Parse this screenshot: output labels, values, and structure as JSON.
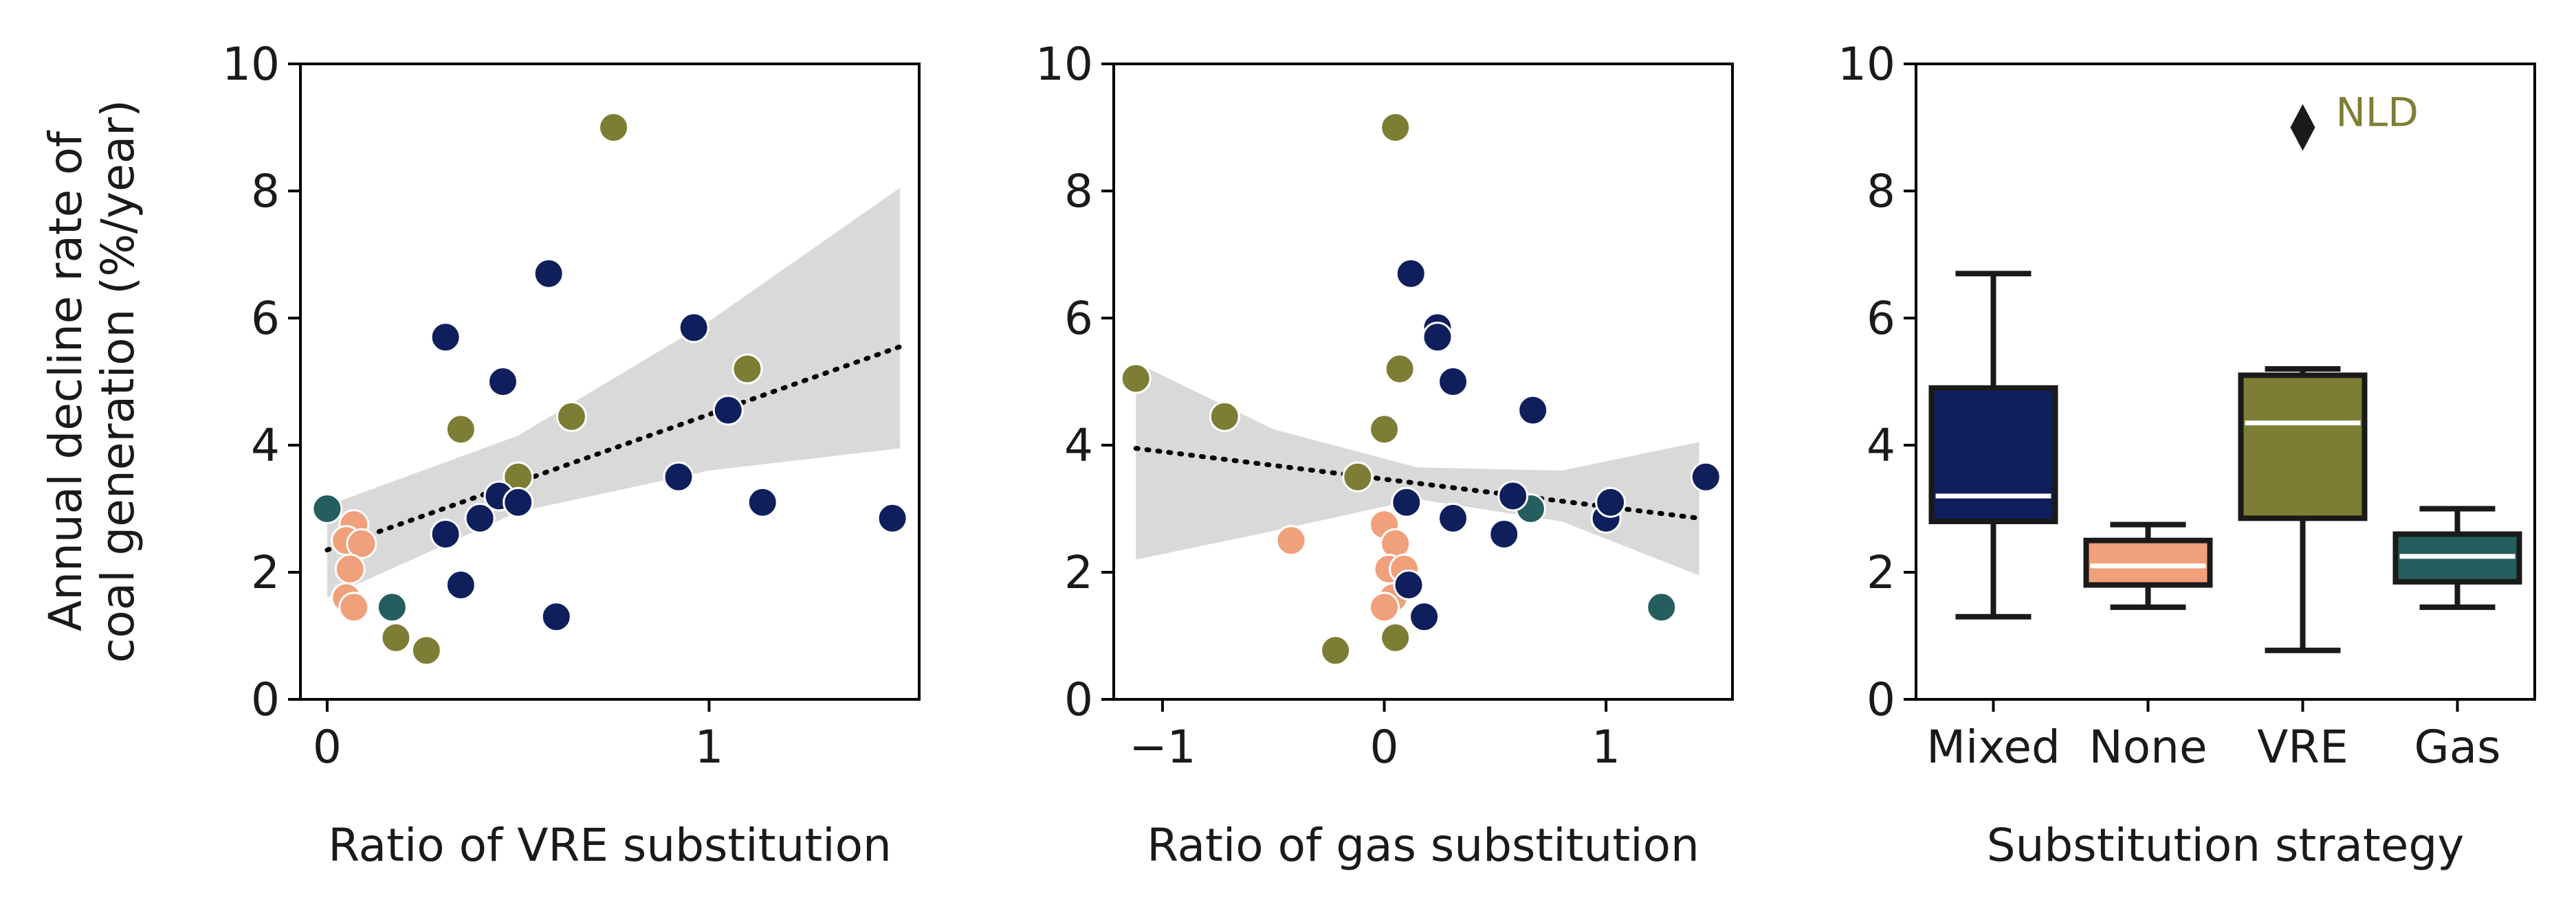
{
  "colors": {
    "Mixed": "#0f1f5c",
    "None": "#f0a07a",
    "VRE": "#7d7d35",
    "Gas": "#245e5e",
    "ci_band": "#d9d9d9",
    "trend": "#000000",
    "axis": "#000000",
    "box_line": "#1a1a1a",
    "median": "#ffffff"
  },
  "shared": {
    "ylabel_line1": "Annual decline rate of",
    "ylabel_line2": "coal generation (%/year)"
  },
  "chart_data": [
    {
      "type": "scatter",
      "xlabel": "Ratio of VRE substitution",
      "xlim": [
        -0.07,
        1.55
      ],
      "ylim": [
        0,
        10
      ],
      "xticks": [
        {
          "v": 0,
          "label": "0"
        },
        {
          "v": 1,
          "label": "1"
        }
      ],
      "yticks": [
        {
          "v": 0,
          "label": "0"
        },
        {
          "v": 2,
          "label": "2"
        },
        {
          "v": 4,
          "label": "4"
        },
        {
          "v": 6,
          "label": "6"
        },
        {
          "v": 8,
          "label": "8"
        },
        {
          "v": 10,
          "label": "10"
        }
      ],
      "trend": {
        "x": [
          0.0,
          1.5
        ],
        "y": [
          2.35,
          5.55
        ],
        "style": "dotted"
      },
      "ci_band": {
        "x": [
          0.0,
          0.5,
          1.0,
          1.5
        ],
        "lower": [
          1.6,
          2.95,
          3.6,
          3.95
        ],
        "upper": [
          3.05,
          4.15,
          5.95,
          8.05
        ]
      },
      "points": [
        {
          "x": 0.0,
          "y": 3.0,
          "group": "Gas"
        },
        {
          "x": 0.17,
          "y": 1.45,
          "group": "Gas"
        },
        {
          "x": 0.07,
          "y": 2.75,
          "group": "None"
        },
        {
          "x": 0.05,
          "y": 2.5,
          "group": "None"
        },
        {
          "x": 0.09,
          "y": 2.45,
          "group": "None"
        },
        {
          "x": 0.06,
          "y": 2.05,
          "group": "None"
        },
        {
          "x": 0.05,
          "y": 1.6,
          "group": "None"
        },
        {
          "x": 0.07,
          "y": 1.45,
          "group": "None"
        },
        {
          "x": 0.18,
          "y": 0.97,
          "group": "VRE"
        },
        {
          "x": 0.26,
          "y": 0.77,
          "group": "VRE"
        },
        {
          "x": 0.35,
          "y": 4.25,
          "group": "VRE"
        },
        {
          "x": 0.5,
          "y": 3.5,
          "group": "VRE"
        },
        {
          "x": 0.64,
          "y": 4.45,
          "group": "VRE"
        },
        {
          "x": 0.75,
          "y": 9.0,
          "group": "VRE"
        },
        {
          "x": 1.1,
          "y": 5.2,
          "group": "VRE"
        },
        {
          "x": 0.31,
          "y": 5.7,
          "group": "Mixed"
        },
        {
          "x": 0.31,
          "y": 2.6,
          "group": "Mixed"
        },
        {
          "x": 0.35,
          "y": 1.8,
          "group": "Mixed"
        },
        {
          "x": 0.4,
          "y": 2.85,
          "group": "Mixed"
        },
        {
          "x": 0.45,
          "y": 3.2,
          "group": "Mixed"
        },
        {
          "x": 0.46,
          "y": 5.0,
          "group": "Mixed"
        },
        {
          "x": 0.5,
          "y": 3.1,
          "group": "Mixed"
        },
        {
          "x": 0.58,
          "y": 6.7,
          "group": "Mixed"
        },
        {
          "x": 0.6,
          "y": 1.3,
          "group": "Mixed"
        },
        {
          "x": 0.92,
          "y": 3.5,
          "group": "Mixed"
        },
        {
          "x": 0.96,
          "y": 5.85,
          "group": "Mixed"
        },
        {
          "x": 1.05,
          "y": 4.55,
          "group": "Mixed"
        },
        {
          "x": 1.14,
          "y": 3.1,
          "group": "Mixed"
        },
        {
          "x": 1.48,
          "y": 2.85,
          "group": "Mixed"
        }
      ]
    },
    {
      "type": "scatter",
      "xlabel": "Ratio of gas substitution",
      "xlim": [
        -1.22,
        1.57
      ],
      "ylim": [
        0,
        10
      ],
      "xticks": [
        {
          "v": -1,
          "label": "−1"
        },
        {
          "v": 0,
          "label": "0"
        },
        {
          "v": 1,
          "label": "1"
        }
      ],
      "yticks": [
        {
          "v": 0,
          "label": "0"
        },
        {
          "v": 2,
          "label": "2"
        },
        {
          "v": 4,
          "label": "4"
        },
        {
          "v": 6,
          "label": "6"
        },
        {
          "v": 8,
          "label": "8"
        },
        {
          "v": 10,
          "label": "10"
        }
      ],
      "trend": {
        "x": [
          -1.12,
          1.42
        ],
        "y": [
          3.95,
          2.85
        ],
        "style": "dotted"
      },
      "ci_band": {
        "x": [
          -1.12,
          -0.5,
          0.15,
          0.8,
          1.42
        ],
        "lower": [
          2.2,
          2.65,
          3.15,
          2.8,
          1.95
        ],
        "upper": [
          5.3,
          4.25,
          3.65,
          3.6,
          4.05
        ]
      },
      "points": [
        {
          "x": -1.12,
          "y": 5.05,
          "group": "VRE"
        },
        {
          "x": -0.72,
          "y": 4.45,
          "group": "VRE"
        },
        {
          "x": -0.22,
          "y": 0.77,
          "group": "VRE"
        },
        {
          "x": -0.12,
          "y": 3.5,
          "group": "VRE"
        },
        {
          "x": 0.0,
          "y": 4.25,
          "group": "VRE"
        },
        {
          "x": 0.05,
          "y": 0.97,
          "group": "VRE"
        },
        {
          "x": 0.05,
          "y": 9.0,
          "group": "VRE"
        },
        {
          "x": 0.07,
          "y": 5.2,
          "group": "VRE"
        },
        {
          "x": -0.42,
          "y": 2.5,
          "group": "None"
        },
        {
          "x": 0.0,
          "y": 2.75,
          "group": "None"
        },
        {
          "x": 0.05,
          "y": 2.45,
          "group": "None"
        },
        {
          "x": 0.02,
          "y": 2.05,
          "group": "None"
        },
        {
          "x": 0.09,
          "y": 2.05,
          "group": "None"
        },
        {
          "x": 0.04,
          "y": 1.6,
          "group": "None"
        },
        {
          "x": 0.0,
          "y": 1.45,
          "group": "None"
        },
        {
          "x": 0.66,
          "y": 3.0,
          "group": "Gas"
        },
        {
          "x": 1.25,
          "y": 1.45,
          "group": "Gas"
        },
        {
          "x": 0.1,
          "y": 3.1,
          "group": "Mixed"
        },
        {
          "x": 0.12,
          "y": 6.7,
          "group": "Mixed"
        },
        {
          "x": 0.24,
          "y": 5.85,
          "group": "Mixed"
        },
        {
          "x": 0.24,
          "y": 5.7,
          "group": "Mixed"
        },
        {
          "x": 0.31,
          "y": 5.0,
          "group": "Mixed"
        },
        {
          "x": 0.31,
          "y": 2.85,
          "group": "Mixed"
        },
        {
          "x": 0.11,
          "y": 1.8,
          "group": "Mixed"
        },
        {
          "x": 0.18,
          "y": 1.3,
          "group": "Mixed"
        },
        {
          "x": 0.54,
          "y": 2.6,
          "group": "Mixed"
        },
        {
          "x": 0.58,
          "y": 3.2,
          "group": "Mixed"
        },
        {
          "x": 0.67,
          "y": 4.55,
          "group": "Mixed"
        },
        {
          "x": 1.0,
          "y": 2.85,
          "group": "Mixed"
        },
        {
          "x": 1.02,
          "y": 3.1,
          "group": "Mixed"
        },
        {
          "x": 1.45,
          "y": 3.5,
          "group": "Mixed"
        }
      ]
    },
    {
      "type": "box",
      "xlabel": "Substitution strategy",
      "ylim": [
        0,
        10
      ],
      "yticks": [
        {
          "v": 0,
          "label": "0"
        },
        {
          "v": 2,
          "label": "2"
        },
        {
          "v": 4,
          "label": "4"
        },
        {
          "v": 6,
          "label": "6"
        },
        {
          "v": 8,
          "label": "8"
        },
        {
          "v": 10,
          "label": "10"
        }
      ],
      "categories": [
        "Mixed",
        "None",
        "VRE",
        "Gas"
      ],
      "boxes": [
        {
          "category": "Mixed",
          "whisker_low": 1.3,
          "q1": 2.8,
          "median": 3.2,
          "q3": 4.9,
          "whisker_high": 6.7
        },
        {
          "category": "None",
          "whisker_low": 1.45,
          "q1": 1.8,
          "median": 2.1,
          "q3": 2.5,
          "whisker_high": 2.75
        },
        {
          "category": "VRE",
          "whisker_low": 0.77,
          "q1": 2.85,
          "median": 4.35,
          "q3": 5.1,
          "whisker_high": 5.2
        },
        {
          "category": "Gas",
          "whisker_low": 1.45,
          "q1": 1.85,
          "median": 2.25,
          "q3": 2.6,
          "whisker_high": 3.0
        }
      ],
      "outliers": [
        {
          "category": "VRE",
          "y": 9.0,
          "label": "NLD"
        }
      ]
    }
  ]
}
